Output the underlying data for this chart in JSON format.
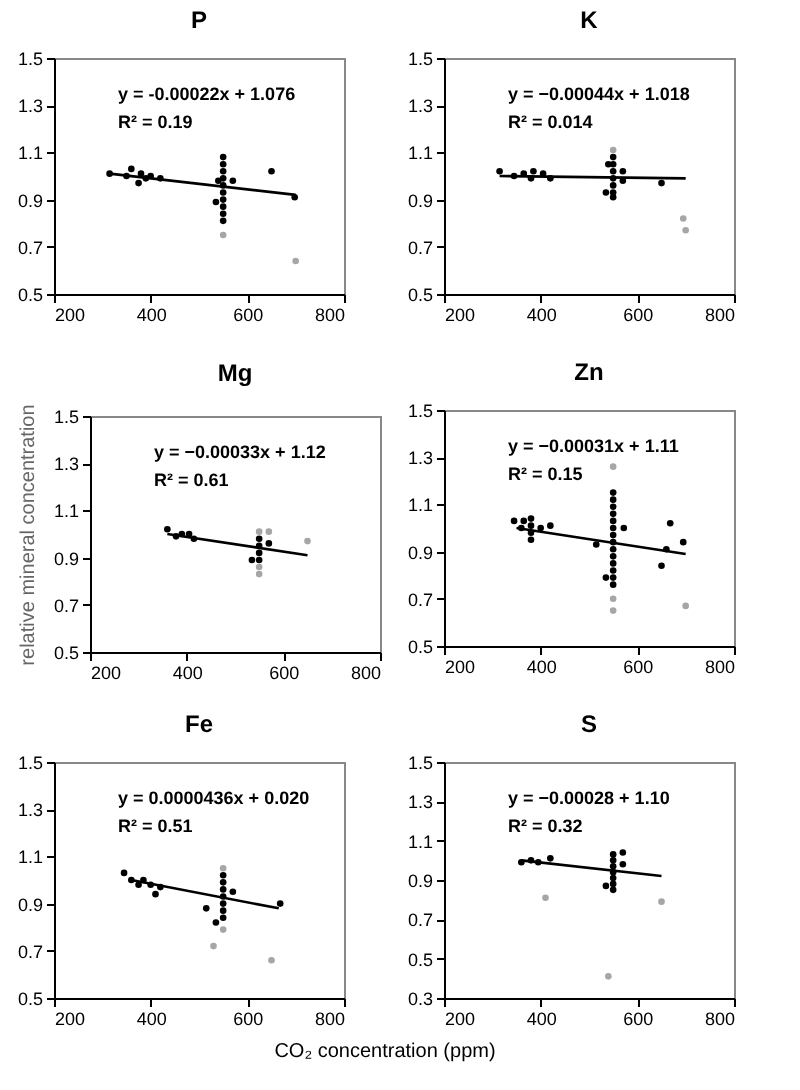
{
  "chart_data": [
    {
      "type": "scatter",
      "title": "P",
      "xlim": [
        200,
        800
      ],
      "xticks": [
        200,
        400,
        600,
        800
      ],
      "ylim": [
        0.5,
        1.5
      ],
      "yticks": [
        0.5,
        0.7,
        0.9,
        1.1,
        1.3,
        1.5
      ],
      "grid": false,
      "marker": "circle",
      "annotations": [
        "y = -0.00022x + 1.076",
        "R² = 0.19"
      ],
      "series": [
        {
          "color": "#000000",
          "x": [
            315,
            350,
            360,
            375,
            380,
            390,
            400,
            420,
            535,
            540,
            550,
            550,
            550,
            550,
            550,
            550,
            550,
            550,
            550,
            550,
            570,
            650,
            698
          ],
          "values": [
            1.01,
            1.0,
            1.03,
            0.97,
            1.01,
            0.99,
            1.0,
            0.99,
            0.89,
            0.98,
            1.08,
            1.05,
            1.02,
            0.99,
            0.96,
            0.93,
            0.9,
            0.87,
            0.84,
            0.81,
            0.98,
            1.02,
            0.91
          ]
        },
        {
          "color": "#a6a6a6",
          "x": [
            550,
            700
          ],
          "values": [
            0.75,
            0.64
          ]
        },
        {
          "type": "line",
          "marker": "none",
          "color": "#000000",
          "x": [
            315,
            700
          ],
          "values": [
            1.01,
            0.92
          ]
        }
      ]
    },
    {
      "type": "scatter",
      "title": "K",
      "xlim": [
        200,
        800
      ],
      "xticks": [
        200,
        400,
        600,
        800
      ],
      "ylim": [
        0.5,
        1.5
      ],
      "yticks": [
        0.5,
        0.7,
        0.9,
        1.1,
        1.3,
        1.5
      ],
      "grid": false,
      "marker": "circle",
      "annotations": [
        "y = −0.00044x + 1.018",
        "R² = 0.014"
      ],
      "series": [
        {
          "color": "#000000",
          "x": [
            315,
            345,
            365,
            380,
            385,
            405,
            420,
            535,
            540,
            550,
            550,
            550,
            550,
            550,
            550,
            550,
            570,
            570,
            650
          ],
          "values": [
            1.02,
            1.0,
            1.01,
            0.99,
            1.02,
            1.01,
            0.99,
            0.93,
            1.05,
            1.08,
            1.05,
            1.02,
            0.99,
            0.96,
            0.93,
            0.91,
            1.02,
            0.98,
            0.97
          ]
        },
        {
          "color": "#a6a6a6",
          "x": [
            550,
            695,
            700
          ],
          "values": [
            1.11,
            0.82,
            0.77
          ]
        },
        {
          "type": "line",
          "marker": "none",
          "color": "#000000",
          "x": [
            315,
            700
          ],
          "values": [
            1.0,
            0.99
          ]
        }
      ]
    },
    {
      "type": "scatter",
      "title": "Mg",
      "ylabel": "relative mineral concentration",
      "xlim": [
        200,
        800
      ],
      "xticks": [
        200,
        400,
        600,
        800
      ],
      "ylim": [
        0.5,
        1.5
      ],
      "yticks": [
        0.5,
        0.7,
        0.9,
        1.1,
        1.3,
        1.5
      ],
      "grid": false,
      "marker": "circle",
      "annotations": [
        "y = −0.00033x + 1.12",
        "R² = 0.61"
      ],
      "series": [
        {
          "color": "#000000",
          "x": [
            360,
            378,
            390,
            405,
            415,
            535,
            550,
            550,
            550,
            550,
            570
          ],
          "values": [
            1.02,
            0.99,
            1.0,
            1.0,
            0.98,
            0.89,
            0.98,
            0.95,
            0.92,
            0.89,
            0.96
          ]
        },
        {
          "color": "#a6a6a6",
          "x": [
            550,
            550,
            550,
            570,
            650
          ],
          "values": [
            1.01,
            0.86,
            0.83,
            1.01,
            0.97
          ]
        },
        {
          "type": "line",
          "marker": "none",
          "color": "#000000",
          "x": [
            360,
            650
          ],
          "values": [
            1.0,
            0.91
          ]
        }
      ]
    },
    {
      "type": "scatter",
      "title": "Zn",
      "xlim": [
        200,
        800
      ],
      "xticks": [
        200,
        400,
        600,
        800
      ],
      "ylim": [
        0.5,
        1.5
      ],
      "yticks": [
        0.5,
        0.7,
        0.9,
        1.1,
        1.3,
        1.5
      ],
      "grid": false,
      "marker": "circle",
      "annotations": [
        "y = −0.00031x + 1.11",
        "R² = 0.15"
      ],
      "series": [
        {
          "color": "#000000",
          "x": [
            345,
            360,
            365,
            380,
            380,
            380,
            380,
            400,
            420,
            515,
            535,
            550,
            550,
            550,
            550,
            550,
            550,
            550,
            550,
            550,
            550,
            550,
            550,
            550,
            550,
            572,
            650,
            660,
            668,
            695
          ],
          "values": [
            1.03,
            1.0,
            1.03,
            1.04,
            1.01,
            0.98,
            0.95,
            1.0,
            1.01,
            0.93,
            0.79,
            1.15,
            1.12,
            1.09,
            1.06,
            1.03,
            1.0,
            0.97,
            0.94,
            0.91,
            0.88,
            0.85,
            0.82,
            0.79,
            0.76,
            1.0,
            0.84,
            0.91,
            1.02,
            0.94
          ]
        },
        {
          "color": "#a6a6a6",
          "x": [
            550,
            550,
            550,
            700
          ],
          "values": [
            1.26,
            0.7,
            0.65,
            0.67
          ]
        },
        {
          "type": "line",
          "marker": "none",
          "color": "#000000",
          "x": [
            350,
            700
          ],
          "values": [
            1.0,
            0.89
          ]
        }
      ]
    },
    {
      "type": "scatter",
      "title": "Fe",
      "xlabel": "CO₂ concentration (ppm)",
      "xlim": [
        200,
        800
      ],
      "xticks": [
        200,
        400,
        600,
        800
      ],
      "ylim": [
        0.5,
        1.5
      ],
      "yticks": [
        0.5,
        0.7,
        0.9,
        1.1,
        1.3,
        1.5
      ],
      "grid": false,
      "marker": "circle",
      "annotations": [
        "y = 0.0000436x + 0.020",
        "R² = 0.51"
      ],
      "series": [
        {
          "color": "#000000",
          "x": [
            345,
            360,
            375,
            385,
            400,
            410,
            420,
            515,
            535,
            550,
            550,
            550,
            550,
            550,
            550,
            550,
            570,
            668
          ],
          "values": [
            1.03,
            1.0,
            0.98,
            1.0,
            0.98,
            0.94,
            0.97,
            0.88,
            0.82,
            1.02,
            0.99,
            0.96,
            0.93,
            0.9,
            0.87,
            0.84,
            0.95,
            0.9
          ]
        },
        {
          "color": "#a6a6a6",
          "x": [
            550,
            550,
            530,
            650
          ],
          "values": [
            1.05,
            0.79,
            0.72,
            0.66
          ]
        },
        {
          "type": "line",
          "marker": "none",
          "color": "#000000",
          "x": [
            360,
            665
          ],
          "values": [
            1.0,
            0.88
          ]
        }
      ]
    },
    {
      "type": "scatter",
      "title": "S",
      "xlim": [
        200,
        800
      ],
      "xticks": [
        200,
        400,
        600,
        800
      ],
      "ylim": [
        0.3,
        1.5
      ],
      "yticks": [
        0.3,
        0.5,
        0.7,
        0.9,
        1.1,
        1.3,
        1.5
      ],
      "grid": false,
      "marker": "circle",
      "annotations": [
        "y = −0.00028 + 1.10",
        "R² = 0.32"
      ],
      "series": [
        {
          "color": "#000000",
          "x": [
            360,
            380,
            395,
            420,
            535,
            550,
            550,
            550,
            550,
            550,
            550,
            550,
            570,
            570
          ],
          "values": [
            0.99,
            1.0,
            0.99,
            1.01,
            0.87,
            1.03,
            1.0,
            0.97,
            0.94,
            0.91,
            0.88,
            0.85,
            1.04,
            0.98
          ]
        },
        {
          "color": "#a6a6a6",
          "x": [
            410,
            540,
            650
          ],
          "values": [
            0.81,
            0.41,
            0.79
          ]
        },
        {
          "type": "line",
          "marker": "none",
          "color": "#000000",
          "x": [
            360,
            650
          ],
          "values": [
            1.0,
            0.92
          ]
        }
      ]
    }
  ]
}
